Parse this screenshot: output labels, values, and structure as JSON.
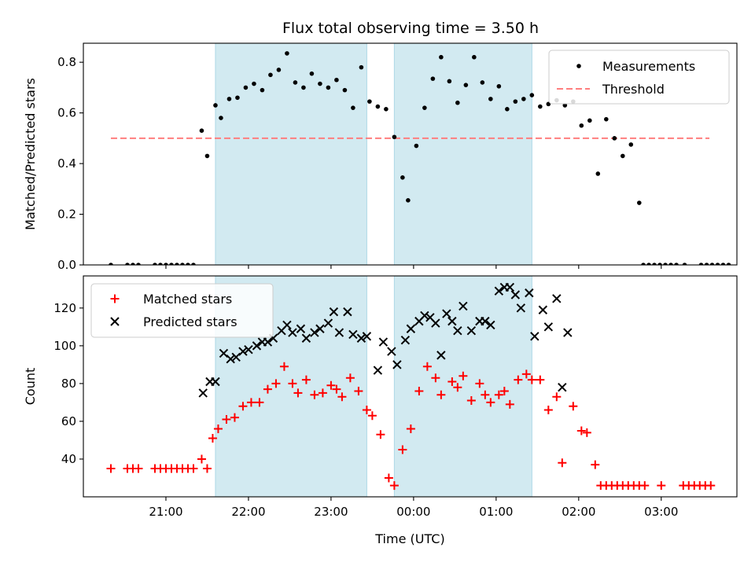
{
  "title": "Flux total observing time = 3.50 h",
  "colors": {
    "measurement": "#000000",
    "threshold": "#ff7f7f",
    "matched": "#ff0000",
    "predicted": "#000000",
    "shade": "#add8e6"
  },
  "chart_data": [
    {
      "type": "scatter",
      "xlabel": "",
      "ylabel": "Matched/Predicted stars",
      "ylim": [
        0,
        0.875
      ],
      "yticks": [
        0.0,
        0.2,
        0.4,
        0.6,
        0.8
      ],
      "ytick_labels": [
        "0.0",
        "0.2",
        "0.4",
        "0.6",
        "0.8"
      ],
      "xlim": [
        "2023-01-01T20:00",
        "2023-01-02T03:55"
      ],
      "shaded_intervals": [
        [
          "21:36",
          "23:26"
        ],
        [
          "23:46",
          "01:26"
        ]
      ],
      "legend": {
        "placement": "top-right",
        "entries": [
          "Measurements",
          "Threshold"
        ]
      },
      "threshold": {
        "name": "Threshold",
        "y": 0.5,
        "x_range": [
          "20:20",
          "03:35"
        ]
      },
      "series": [
        {
          "name": "Measurements",
          "marker": "dot",
          "points": [
            [
              "20:20",
              0.0
            ],
            [
              "20:32",
              0.0
            ],
            [
              "20:36",
              0.0
            ],
            [
              "20:40",
              0.0
            ],
            [
              "20:52",
              0.0
            ],
            [
              "20:56",
              0.0
            ],
            [
              "21:00",
              0.0
            ],
            [
              "21:04",
              0.0
            ],
            [
              "21:08",
              0.0
            ],
            [
              "21:12",
              0.0
            ],
            [
              "21:16",
              0.0
            ],
            [
              "21:20",
              0.0
            ],
            [
              "21:26",
              0.53
            ],
            [
              "21:30",
              0.43
            ],
            [
              "21:36",
              0.63
            ],
            [
              "21:40",
              0.58
            ],
            [
              "21:46",
              0.655
            ],
            [
              "21:52",
              0.66
            ],
            [
              "21:58",
              0.7
            ],
            [
              "22:04",
              0.715
            ],
            [
              "22:10",
              0.69
            ],
            [
              "22:16",
              0.75
            ],
            [
              "22:22",
              0.77
            ],
            [
              "22:28",
              0.835
            ],
            [
              "22:34",
              0.72
            ],
            [
              "22:40",
              0.7
            ],
            [
              "22:46",
              0.755
            ],
            [
              "22:52",
              0.715
            ],
            [
              "22:58",
              0.7
            ],
            [
              "23:04",
              0.73
            ],
            [
              "23:10",
              0.69
            ],
            [
              "23:16",
              0.62
            ],
            [
              "23:22",
              0.78
            ],
            [
              "23:28",
              0.645
            ],
            [
              "23:34",
              0.625
            ],
            [
              "23:40",
              0.615
            ],
            [
              "23:46",
              0.505
            ],
            [
              "23:52",
              0.345
            ],
            [
              "23:56",
              0.255
            ],
            [
              "00:02",
              0.47
            ],
            [
              "00:08",
              0.62
            ],
            [
              "00:14",
              0.735
            ],
            [
              "00:20",
              0.82
            ],
            [
              "00:26",
              0.725
            ],
            [
              "00:32",
              0.64
            ],
            [
              "00:38",
              0.71
            ],
            [
              "00:44",
              0.82
            ],
            [
              "00:50",
              0.72
            ],
            [
              "00:56",
              0.655
            ],
            [
              "01:02",
              0.705
            ],
            [
              "01:08",
              0.615
            ],
            [
              "01:14",
              0.645
            ],
            [
              "01:20",
              0.655
            ],
            [
              "01:26",
              0.67
            ],
            [
              "01:32",
              0.625
            ],
            [
              "01:38",
              0.635
            ],
            [
              "01:44",
              0.65
            ],
            [
              "01:50",
              0.63
            ],
            [
              "01:56",
              0.645
            ],
            [
              "02:02",
              0.55
            ],
            [
              "02:08",
              0.57
            ],
            [
              "02:14",
              0.36
            ],
            [
              "02:20",
              0.575
            ],
            [
              "02:26",
              0.5
            ],
            [
              "02:32",
              0.43
            ],
            [
              "02:38",
              0.475
            ],
            [
              "02:44",
              0.245
            ],
            [
              "02:47",
              0.0
            ],
            [
              "02:51",
              0.0
            ],
            [
              "02:55",
              0.0
            ],
            [
              "02:59",
              0.0
            ],
            [
              "03:03",
              0.0
            ],
            [
              "03:07",
              0.0
            ],
            [
              "03:11",
              0.0
            ],
            [
              "03:17",
              0.0
            ],
            [
              "03:29",
              0.0
            ],
            [
              "03:33",
              0.0
            ],
            [
              "03:37",
              0.0
            ],
            [
              "03:41",
              0.0
            ],
            [
              "03:45",
              0.0
            ],
            [
              "03:49",
              0.0
            ]
          ]
        }
      ]
    },
    {
      "type": "scatter",
      "xlabel": "Time (UTC)",
      "ylabel": "Count",
      "ylim": [
        20,
        137
      ],
      "yticks": [
        40,
        60,
        80,
        100,
        120
      ],
      "ytick_labels": [
        "40",
        "60",
        "80",
        "100",
        "120"
      ],
      "xticks": [
        "21:00",
        "22:00",
        "23:00",
        "00:00",
        "01:00",
        "02:00",
        "03:00"
      ],
      "xtick_labels": [
        "21:00",
        "22:00",
        "23:00",
        "00:00",
        "01:00",
        "02:00",
        "03:00"
      ],
      "xlim": [
        "2023-01-01T20:00",
        "2023-01-02T03:55"
      ],
      "shaded_intervals": [
        [
          "21:36",
          "23:26"
        ],
        [
          "23:46",
          "01:26"
        ]
      ],
      "legend": {
        "placement": "top-left",
        "entries": [
          "Matched stars",
          "Predicted stars"
        ]
      },
      "series": [
        {
          "name": "Matched stars",
          "marker": "plus",
          "points": [
            [
              "20:20",
              35
            ],
            [
              "20:32",
              35
            ],
            [
              "20:36",
              35
            ],
            [
              "20:40",
              35
            ],
            [
              "20:52",
              35
            ],
            [
              "20:56",
              35
            ],
            [
              "21:00",
              35
            ],
            [
              "21:04",
              35
            ],
            [
              "21:08",
              35
            ],
            [
              "21:12",
              35
            ],
            [
              "21:16",
              35
            ],
            [
              "21:20",
              35
            ],
            [
              "21:26",
              40
            ],
            [
              "21:30",
              35
            ],
            [
              "21:34",
              51
            ],
            [
              "21:38",
              56
            ],
            [
              "21:44",
              61
            ],
            [
              "21:50",
              62
            ],
            [
              "21:56",
              68
            ],
            [
              "22:02",
              70
            ],
            [
              "22:08",
              70
            ],
            [
              "22:14",
              77
            ],
            [
              "22:20",
              80
            ],
            [
              "22:26",
              89
            ],
            [
              "22:32",
              80
            ],
            [
              "22:36",
              75
            ],
            [
              "22:42",
              82
            ],
            [
              "22:48",
              74
            ],
            [
              "22:54",
              75
            ],
            [
              "23:00",
              79
            ],
            [
              "23:04",
              77
            ],
            [
              "23:08",
              73
            ],
            [
              "23:14",
              83
            ],
            [
              "23:20",
              76
            ],
            [
              "23:26",
              66
            ],
            [
              "23:30",
              63
            ],
            [
              "23:36",
              53
            ],
            [
              "23:42",
              30
            ],
            [
              "23:46",
              26
            ],
            [
              "23:52",
              45
            ],
            [
              "23:58",
              56
            ],
            [
              "00:04",
              76
            ],
            [
              "00:10",
              89
            ],
            [
              "00:16",
              83
            ],
            [
              "00:20",
              74
            ],
            [
              "00:28",
              81
            ],
            [
              "00:32",
              78
            ],
            [
              "00:36",
              84
            ],
            [
              "00:42",
              71
            ],
            [
              "00:48",
              80
            ],
            [
              "00:52",
              74
            ],
            [
              "00:56",
              70
            ],
            [
              "01:02",
              74
            ],
            [
              "01:06",
              76
            ],
            [
              "01:10",
              69
            ],
            [
              "01:16",
              82
            ],
            [
              "01:22",
              85
            ],
            [
              "01:26",
              82
            ],
            [
              "01:32",
              82
            ],
            [
              "01:38",
              66
            ],
            [
              "01:44",
              73
            ],
            [
              "01:48",
              38
            ],
            [
              "01:56",
              68
            ],
            [
              "02:02",
              55
            ],
            [
              "02:06",
              54
            ],
            [
              "02:12",
              37
            ],
            [
              "02:16",
              26
            ],
            [
              "02:20",
              26
            ],
            [
              "02:24",
              26
            ],
            [
              "02:28",
              26
            ],
            [
              "02:32",
              26
            ],
            [
              "02:36",
              26
            ],
            [
              "02:40",
              26
            ],
            [
              "02:44",
              26
            ],
            [
              "02:48",
              26
            ],
            [
              "03:00",
              26
            ],
            [
              "03:16",
              26
            ],
            [
              "03:20",
              26
            ],
            [
              "03:24",
              26
            ],
            [
              "03:28",
              26
            ],
            [
              "03:32",
              26
            ],
            [
              "03:36",
              26
            ]
          ]
        },
        {
          "name": "Predicted stars",
          "marker": "x",
          "points": [
            [
              "21:27",
              75
            ],
            [
              "21:32",
              81
            ],
            [
              "21:36",
              81
            ],
            [
              "21:42",
              96
            ],
            [
              "21:47",
              93
            ],
            [
              "21:51",
              94
            ],
            [
              "21:56",
              97
            ],
            [
              "22:00",
              98
            ],
            [
              "22:06",
              100
            ],
            [
              "22:10",
              102
            ],
            [
              "22:14",
              102
            ],
            [
              "22:18",
              104
            ],
            [
              "22:24",
              108
            ],
            [
              "22:28",
              111
            ],
            [
              "22:32",
              107
            ],
            [
              "22:38",
              109
            ],
            [
              "22:42",
              104
            ],
            [
              "22:48",
              107
            ],
            [
              "22:52",
              109
            ],
            [
              "22:58",
              112
            ],
            [
              "23:02",
              118
            ],
            [
              "23:06",
              107
            ],
            [
              "23:12",
              118
            ],
            [
              "23:16",
              106
            ],
            [
              "23:22",
              104
            ],
            [
              "23:26",
              105
            ],
            [
              "23:34",
              87
            ],
            [
              "23:38",
              102
            ],
            [
              "23:44",
              97
            ],
            [
              "23:48",
              90
            ],
            [
              "23:54",
              103
            ],
            [
              "23:58",
              109
            ],
            [
              "00:04",
              113
            ],
            [
              "00:08",
              116
            ],
            [
              "00:12",
              115
            ],
            [
              "00:16",
              112
            ],
            [
              "00:20",
              95
            ],
            [
              "00:24",
              117
            ],
            [
              "00:28",
              113
            ],
            [
              "00:32",
              108
            ],
            [
              "00:36",
              121
            ],
            [
              "00:42",
              108
            ],
            [
              "00:48",
              113
            ],
            [
              "00:52",
              113
            ],
            [
              "00:56",
              111
            ],
            [
              "01:02",
              129
            ],
            [
              "01:06",
              131
            ],
            [
              "01:10",
              131
            ],
            [
              "01:14",
              127
            ],
            [
              "01:18",
              120
            ],
            [
              "01:24",
              128
            ],
            [
              "01:28",
              105
            ],
            [
              "01:34",
              119
            ],
            [
              "01:38",
              110
            ],
            [
              "01:44",
              125
            ],
            [
              "01:48",
              78
            ],
            [
              "01:52",
              107
            ]
          ]
        }
      ]
    }
  ]
}
